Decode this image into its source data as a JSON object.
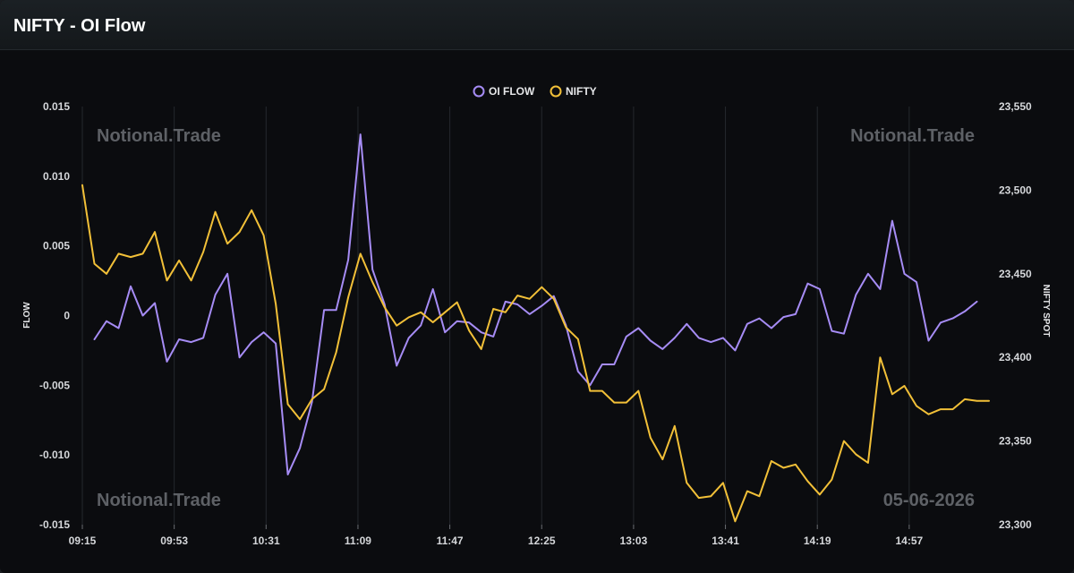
{
  "header": {
    "title": "NIFTY - OI Flow"
  },
  "watermarks": [
    "Notional.Trade",
    "Notional.Trade",
    "Notional.Trade",
    "05-06-2026"
  ],
  "colors": {
    "oi_flow": "#a68cf5",
    "nifty": "#f2c038",
    "grid": "#25282d",
    "background": "#0b0c0f"
  },
  "chart_data": {
    "type": "line",
    "title": "",
    "legend_position": "top-center",
    "grid": true,
    "x_tick_labels": [
      "09:15",
      "09:53",
      "10:31",
      "11:09",
      "11:47",
      "12:25",
      "13:03",
      "13:41",
      "14:19",
      "14:57"
    ],
    "y_left": {
      "label": "FLOW",
      "range": [
        -0.015,
        0.015
      ],
      "ticks": [
        "-0.015",
        "-0.010",
        "-0.005",
        "0",
        "0.005",
        "0.010",
        "0.015"
      ]
    },
    "y_right": {
      "label": "NIFTY SPOT",
      "range": [
        23300,
        23550
      ],
      "ticks": [
        "23,300",
        "23,350",
        "23,400",
        "23,450",
        "23,500",
        "23,550"
      ]
    },
    "series": [
      {
        "name": "OI FLOW",
        "axis": "left",
        "x": [
          "09:20",
          "09:25",
          "09:30",
          "09:35",
          "09:40",
          "09:45",
          "09:50",
          "09:55",
          "10:00",
          "10:05",
          "10:10",
          "10:15",
          "10:20",
          "10:25",
          "10:30",
          "10:35",
          "10:40",
          "10:45",
          "10:50",
          "10:55",
          "11:00",
          "11:05",
          "11:10",
          "11:15",
          "11:20",
          "11:25",
          "11:30",
          "11:35",
          "11:40",
          "11:45",
          "11:50",
          "11:55",
          "12:00",
          "12:05",
          "12:10",
          "12:15",
          "12:20",
          "12:25",
          "12:30",
          "12:35",
          "12:40",
          "12:45",
          "12:50",
          "12:55",
          "13:00",
          "13:05",
          "13:10",
          "13:15",
          "13:20",
          "13:25",
          "13:30",
          "13:35",
          "13:40",
          "13:45",
          "13:50",
          "13:55",
          "14:00",
          "14:05",
          "14:10",
          "14:15",
          "14:20",
          "14:25",
          "14:30",
          "14:35",
          "14:40",
          "14:45",
          "14:50",
          "14:55",
          "15:00",
          "15:05",
          "15:10",
          "15:15",
          "15:20",
          "15:25"
        ],
        "values": [
          -0.0017,
          -0.0004,
          -0.0009,
          0.0021,
          0.0,
          0.0009,
          -0.0033,
          -0.0017,
          -0.0019,
          -0.0016,
          0.0015,
          0.003,
          -0.003,
          -0.0019,
          -0.0012,
          -0.002,
          -0.0114,
          -0.0095,
          -0.0062,
          0.0004,
          0.0004,
          0.004,
          0.013,
          0.0033,
          0.0008,
          -0.0036,
          -0.0016,
          -0.0007,
          0.0019,
          -0.0012,
          -0.0004,
          -0.0005,
          -0.0012,
          -0.0015,
          0.001,
          0.0008,
          0.0001,
          0.0007,
          0.0014,
          -0.0007,
          -0.004,
          -0.005,
          -0.0035,
          -0.0035,
          -0.0015,
          -0.0009,
          -0.0018,
          -0.0024,
          -0.0016,
          -0.0006,
          -0.0016,
          -0.0019,
          -0.0016,
          -0.0025,
          -0.0006,
          -0.0002,
          -0.0009,
          -0.0001,
          0.0001,
          0.0023,
          0.0019,
          -0.0011,
          -0.0013,
          0.0015,
          0.003,
          0.0019,
          0.0068,
          0.003,
          0.0024,
          -0.0018,
          -0.0005,
          -0.0002,
          0.0003,
          0.001
        ]
      },
      {
        "name": "NIFTY",
        "axis": "right",
        "x": [
          "09:15",
          "09:20",
          "09:25",
          "09:30",
          "09:35",
          "09:40",
          "09:45",
          "09:50",
          "09:55",
          "10:00",
          "10:05",
          "10:10",
          "10:15",
          "10:20",
          "10:25",
          "10:30",
          "10:35",
          "10:40",
          "10:45",
          "10:50",
          "10:55",
          "11:00",
          "11:05",
          "11:10",
          "11:15",
          "11:20",
          "11:25",
          "11:30",
          "11:35",
          "11:40",
          "11:45",
          "11:50",
          "11:55",
          "12:00",
          "12:05",
          "12:10",
          "12:15",
          "12:20",
          "12:25",
          "12:30",
          "12:35",
          "12:40",
          "12:45",
          "12:50",
          "12:55",
          "13:00",
          "13:05",
          "13:10",
          "13:15",
          "13:20",
          "13:25",
          "13:30",
          "13:35",
          "13:40",
          "13:45",
          "13:50",
          "13:55",
          "14:00",
          "14:05",
          "14:10",
          "14:15",
          "14:20",
          "14:25",
          "14:30",
          "14:35",
          "14:40",
          "14:45",
          "14:50",
          "14:55",
          "15:00",
          "15:05",
          "15:10",
          "15:15",
          "15:20",
          "15:25",
          "15:30"
        ],
        "values": [
          23503,
          23456,
          23450,
          23462,
          23460,
          23462,
          23475,
          23446,
          23458,
          23446,
          23463,
          23487,
          23468,
          23475,
          23488,
          23473,
          23432,
          23372,
          23363,
          23375,
          23381,
          23403,
          23436,
          23462,
          23445,
          23430,
          23419,
          23424,
          23427,
          23421,
          23427,
          23433,
          23416,
          23405,
          23429,
          23427,
          23437,
          23435,
          23442,
          23435,
          23418,
          23411,
          23380,
          23380,
          23373,
          23373,
          23380,
          23352,
          23339,
          23359,
          23325,
          23316,
          23317,
          23325,
          23302,
          23320,
          23317,
          23338,
          23334,
          23336,
          23326,
          23318,
          23327,
          23350,
          23342,
          23337,
          23400,
          23378,
          23383,
          23371,
          23366,
          23369,
          23369,
          23375,
          23374,
          23374
        ]
      }
    ]
  }
}
